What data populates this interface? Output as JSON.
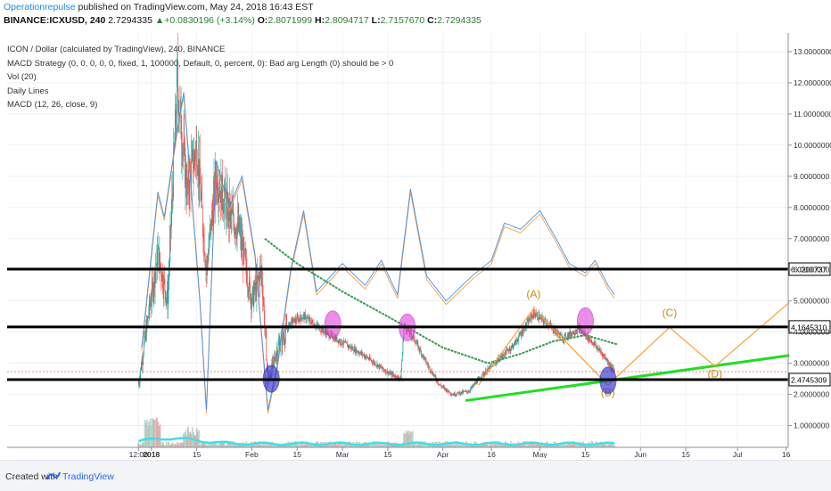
{
  "header": {
    "brand": "Operationrepulse",
    "published": " published on TradingView.com, May 24, 2018 16:43 EST",
    "symbol": "BINANCE:ICXUSD, 240",
    "last": "2.7294335",
    "change_arrow": "▲",
    "change": "+0.0830196 (+3.14%)",
    "o_label": "O:",
    "o": "2.8071999",
    "h_label": "H:",
    "h": "2.8094717",
    "l_label": "L:",
    "l": "2.7157670",
    "c_label": "C:",
    "c": "2.7294335"
  },
  "legend": {
    "line1": "ICON / Dollar (calculated by TradingView), 240, BINANCE",
    "line2": "MACD Strategy (0, 0, 0, 0, 0, fixed, 1, 100000, Default, 0, percent, 0): Bad arg Length (0) should be > 0",
    "line3": "Vol (20)",
    "line4": "Daily Lines",
    "line5": "MACD (12, 26, close, 9)"
  },
  "colors": {
    "up_candle": "#26a69a",
    "down_candle": "#ef5350",
    "horizontal_lines": "#000000",
    "trendline": "#22dd22",
    "moving_average": "#3a9a52",
    "wave_projection": "#f7a233",
    "wave_label": "#c98a10",
    "macd_line": "#4a90e2",
    "signal_line": "#f0a050",
    "volume_ma": "#3ee0e8",
    "pink_marker": "#e040e0",
    "blue_marker": "#3030d0",
    "last_price_line": "#e57373"
  },
  "chart_data": {
    "type": "candlestick",
    "title": "ICON / Dollar (calculated by TradingView), 240, BINANCE",
    "x_tick_labels": [
      "12:00",
      "2018",
      "15",
      "Feb",
      "15",
      "Mar",
      "15",
      "Apr",
      "16",
      "May",
      "15",
      "Jun",
      "15",
      "Jul",
      "16"
    ],
    "y_tick_labels": [
      "1.0000000",
      "2.0000000",
      "3.0000000",
      "4.0000000",
      "5.0000000",
      "6.0000000",
      "7.0000000",
      "8.0000000",
      "9.0000000",
      "10.0000000",
      "11.0000000",
      "12.0000000",
      "13.0000000"
    ],
    "ylim": [
      0.3,
      13.6
    ],
    "horizontal_levels": [
      {
        "value": 6.0200737,
        "label": "6.0200737"
      },
      {
        "value": 4.164531,
        "label": "4.1645310"
      },
      {
        "value": 2.4745309,
        "label": "2.4745309"
      }
    ],
    "last_price": 2.7294335,
    "price_path": [
      {
        "date": "2017-12-28",
        "price": 2.3
      },
      {
        "date": "2017-12-31",
        "price": 4.5
      },
      {
        "date": "2018-01-03",
        "price": 6.5
      },
      {
        "date": "2018-01-06",
        "price": 5.0
      },
      {
        "date": "2018-01-09",
        "price": 12.0
      },
      {
        "date": "2018-01-12",
        "price": 8.5
      },
      {
        "date": "2018-01-15",
        "price": 10.0
      },
      {
        "date": "2018-01-18",
        "price": 6.0
      },
      {
        "date": "2018-01-21",
        "price": 9.0
      },
      {
        "date": "2018-01-25",
        "price": 7.8
      },
      {
        "date": "2018-01-28",
        "price": 7.3
      },
      {
        "date": "2018-02-01",
        "price": 5.0
      },
      {
        "date": "2018-02-04",
        "price": 6.0
      },
      {
        "date": "2018-02-06",
        "price": 2.4
      },
      {
        "date": "2018-02-09",
        "price": 3.5
      },
      {
        "date": "2018-02-13",
        "price": 4.3
      },
      {
        "date": "2018-02-17",
        "price": 4.5
      },
      {
        "date": "2018-02-21",
        "price": 4.2
      },
      {
        "date": "2018-02-25",
        "price": 3.9
      },
      {
        "date": "2018-03-02",
        "price": 3.6
      },
      {
        "date": "2018-03-07",
        "price": 3.3
      },
      {
        "date": "2018-03-11",
        "price": 3.0
      },
      {
        "date": "2018-03-15",
        "price": 2.7
      },
      {
        "date": "2018-03-19",
        "price": 2.5
      },
      {
        "date": "2018-03-20",
        "price": 4.2
      },
      {
        "date": "2018-03-23",
        "price": 3.8
      },
      {
        "date": "2018-03-27",
        "price": 3.0
      },
      {
        "date": "2018-03-31",
        "price": 2.3
      },
      {
        "date": "2018-04-04",
        "price": 2.0
      },
      {
        "date": "2018-04-09",
        "price": 2.1
      },
      {
        "date": "2018-04-13",
        "price": 2.6
      },
      {
        "date": "2018-04-18",
        "price": 3.1
      },
      {
        "date": "2018-04-23",
        "price": 3.6
      },
      {
        "date": "2018-04-29",
        "price": 4.6
      },
      {
        "date": "2018-05-03",
        "price": 4.3
      },
      {
        "date": "2018-05-08",
        "price": 3.8
      },
      {
        "date": "2018-05-13",
        "price": 4.1
      },
      {
        "date": "2018-05-17",
        "price": 3.7
      },
      {
        "date": "2018-05-21",
        "price": 3.2
      },
      {
        "date": "2018-05-24",
        "price": 2.73
      }
    ],
    "moving_average": [
      {
        "date": "2018-02-05",
        "price": 7.0
      },
      {
        "date": "2018-02-15",
        "price": 6.2
      },
      {
        "date": "2018-03-01",
        "price": 5.3
      },
      {
        "date": "2018-03-15",
        "price": 4.5
      },
      {
        "date": "2018-04-01",
        "price": 3.5
      },
      {
        "date": "2018-04-15",
        "price": 3.0
      },
      {
        "date": "2018-04-25",
        "price": 3.3
      },
      {
        "date": "2018-05-05",
        "price": 3.7
      },
      {
        "date": "2018-05-15",
        "price": 3.9
      },
      {
        "date": "2018-05-25",
        "price": 3.6
      }
    ],
    "trendline": [
      {
        "date": "2018-04-08",
        "price": 1.8
      },
      {
        "date": "2018-07-17",
        "price": 3.25
      }
    ],
    "wave_projection": {
      "points": [
        {
          "date": "2018-04-12",
          "price": 2.3
        },
        {
          "date": "2018-04-29",
          "price": 4.75
        },
        {
          "date": "2018-05-22",
          "price": 2.3
        },
        {
          "date": "2018-06-10",
          "price": 4.15
        },
        {
          "date": "2018-06-24",
          "price": 2.9
        },
        {
          "date": "2018-07-17",
          "price": 4.95
        }
      ],
      "labels": [
        {
          "text": "(A)",
          "date": "2018-04-29",
          "price": 5.1
        },
        {
          "text": "(B)",
          "date": "2018-05-22",
          "price": 1.95
        },
        {
          "text": "(C)",
          "date": "2018-06-10",
          "price": 4.5
        },
        {
          "text": "(D)",
          "date": "2018-06-24",
          "price": 2.55
        }
      ]
    },
    "macd_overlay": [
      {
        "date": "2017-12-29",
        "price": 3.5
      },
      {
        "date": "2018-01-03",
        "price": 8.5
      },
      {
        "date": "2018-01-05",
        "price": 7.7
      },
      {
        "date": "2018-01-09",
        "price": 10.5
      },
      {
        "date": "2018-01-11",
        "price": 11.7
      },
      {
        "date": "2018-01-13",
        "price": 9.0
      },
      {
        "date": "2018-01-16",
        "price": 5.0
      },
      {
        "date": "2018-01-18",
        "price": 1.5
      },
      {
        "date": "2018-01-21",
        "price": 9.5
      },
      {
        "date": "2018-01-25",
        "price": 8.0
      },
      {
        "date": "2018-01-29",
        "price": 9.0
      },
      {
        "date": "2018-02-02",
        "price": 6.5
      },
      {
        "date": "2018-02-06",
        "price": 1.5
      },
      {
        "date": "2018-02-09",
        "price": 3.0
      },
      {
        "date": "2018-02-13",
        "price": 6.0
      },
      {
        "date": "2018-02-17",
        "price": 7.9
      },
      {
        "date": "2018-02-21",
        "price": 5.3
      },
      {
        "date": "2018-03-01",
        "price": 6.2
      },
      {
        "date": "2018-03-08",
        "price": 5.5
      },
      {
        "date": "2018-03-13",
        "price": 6.3
      },
      {
        "date": "2018-03-18",
        "price": 5.2
      },
      {
        "date": "2018-03-22",
        "price": 8.6
      },
      {
        "date": "2018-03-27",
        "price": 5.8
      },
      {
        "date": "2018-04-02",
        "price": 5.0
      },
      {
        "date": "2018-04-10",
        "price": 5.8
      },
      {
        "date": "2018-04-16",
        "price": 6.3
      },
      {
        "date": "2018-04-20",
        "price": 7.5
      },
      {
        "date": "2018-04-25",
        "price": 7.3
      },
      {
        "date": "2018-05-01",
        "price": 7.9
      },
      {
        "date": "2018-05-06",
        "price": 7.0
      },
      {
        "date": "2018-05-10",
        "price": 6.2
      },
      {
        "date": "2018-05-15",
        "price": 5.9
      },
      {
        "date": "2018-05-18",
        "price": 6.3
      },
      {
        "date": "2018-05-22",
        "price": 5.5
      },
      {
        "date": "2018-05-24",
        "price": 5.2
      }
    ],
    "pink_markers": [
      {
        "date": "2018-02-26",
        "price": 4.25
      },
      {
        "date": "2018-03-21",
        "price": 4.15
      },
      {
        "date": "2018-05-15",
        "price": 4.35
      }
    ],
    "blue_markers": [
      {
        "date": "2018-02-07",
        "price": 2.5
      },
      {
        "date": "2018-05-22",
        "price": 2.45
      }
    ],
    "volume": "low bars along the bottom with spikes near 2018-01-01, 2018-01-13 and 2018-03-21"
  },
  "footer": {
    "created_with": "Created with",
    "brand": "TradingView"
  }
}
